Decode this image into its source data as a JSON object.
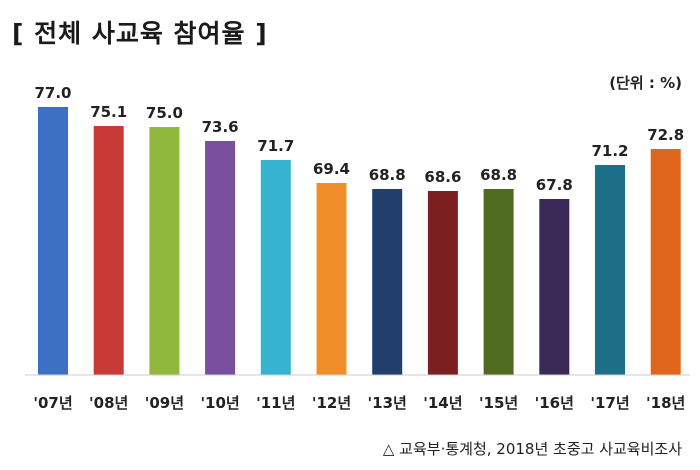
{
  "header": {
    "title": "[ 전체 사교육 참여율 ]",
    "unit": "(단위 : %)"
  },
  "footer": {
    "source": "△ 교육부·통계청, 2018년 초중고 사교육비조사"
  },
  "chart_data": {
    "type": "bar",
    "title": "[ 전체 사교육 참여율 ]",
    "xlabel": "",
    "ylabel": "",
    "categories": [
      "'07년",
      "'08년",
      "'09년",
      "'10년",
      "'11년",
      "'12년",
      "'13년",
      "'14년",
      "'15년",
      "'16년",
      "'17년",
      "'18년"
    ],
    "values": [
      77.0,
      75.1,
      75.0,
      73.6,
      71.7,
      69.4,
      68.8,
      68.6,
      68.8,
      67.8,
      71.2,
      72.8
    ],
    "value_labels": [
      "77.0",
      "75.1",
      "75.0",
      "73.6",
      "71.7",
      "69.4",
      "68.8",
      "68.6",
      "68.8",
      "67.8",
      "71.2",
      "72.8"
    ],
    "colors": [
      "#3d6fc4",
      "#c83a36",
      "#8fb83c",
      "#7a4fa0",
      "#35b3cf",
      "#f08f2a",
      "#223e6a",
      "#7a2020",
      "#4f6b20",
      "#3b2a58",
      "#1c6f86",
      "#e0661e"
    ],
    "grid": false,
    "legend": "none"
  }
}
